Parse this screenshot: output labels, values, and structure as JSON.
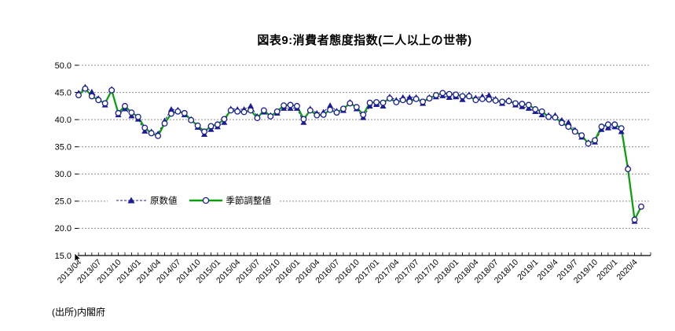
{
  "title": "図表9:消費者態度指数(二人以上の世帯)",
  "source_note": "(出所)内閣府",
  "legend": [
    {
      "label": "原数値",
      "marker": "triangle-icon",
      "line_style": "dashed",
      "color": "#1c1c96"
    },
    {
      "label": "季節調整値",
      "marker": "circle-icon",
      "line_style": "solid",
      "color": "#0ca00c"
    }
  ],
  "colors": {
    "original_series": "#1c1c96",
    "adjusted_series": "#0ca00c",
    "gridline": "#8c8c8c",
    "axis": "#000000"
  },
  "chart_data": {
    "type": "line",
    "title": "図表9:消費者態度指数(二人以上の世帯)",
    "xlabel": "",
    "ylabel": "",
    "ylim": [
      15.0,
      50.0
    ],
    "yticks": [
      15.0,
      20.0,
      25.0,
      30.0,
      35.0,
      40.0,
      45.0,
      50.0
    ],
    "xtick_every": 3,
    "grid": "horizontal-dashed",
    "legend_position": "inside-left-middle",
    "x": [
      "2013/04",
      "2013/05",
      "2013/06",
      "2013/07",
      "2013/08",
      "2013/09",
      "2013/10",
      "2013/11",
      "2013/12",
      "2014/01",
      "2014/02",
      "2014/03",
      "2014/04",
      "2014/05",
      "2014/06",
      "2014/07",
      "2014/08",
      "2014/09",
      "2014/10",
      "2014/11",
      "2014/12",
      "2015/01",
      "2015/02",
      "2015/03",
      "2015/04",
      "2015/05",
      "2015/06",
      "2015/07",
      "2015/08",
      "2015/09",
      "2015/10",
      "2015/11",
      "2015/12",
      "2016/01",
      "2016/02",
      "2016/03",
      "2016/04",
      "2016/05",
      "2016/06",
      "2016/07",
      "2016/08",
      "2016/09",
      "2016/10",
      "2016/11",
      "2016/12",
      "2017/01",
      "2017/02",
      "2017/03",
      "2017/04",
      "2017/05",
      "2017/06",
      "2017/07",
      "2017/08",
      "2017/09",
      "2017/10",
      "2017/11",
      "2017/12",
      "2018/01",
      "2018/02",
      "2018/03",
      "2018/04",
      "2018/05",
      "2018/06",
      "2018/07",
      "2018/08",
      "2018/09",
      "2018/10",
      "2018/11",
      "2018/12",
      "2019/1",
      "2019/2",
      "2019/3",
      "2019/4",
      "2019/5",
      "2019/6",
      "2019/7",
      "2019/8",
      "2019/9",
      "2019/10",
      "2019/11",
      "2019/12",
      "2020/1",
      "2020/2",
      "2020/3",
      "2020/4",
      "2020/5"
    ],
    "series": [
      {
        "name": "原数値",
        "marker": "triangle",
        "line": "dashed",
        "color": "#1c1c96",
        "values": [
          44.9,
          46.0,
          45.1,
          43.9,
          42.7,
          45.6,
          40.9,
          42.0,
          40.7,
          40.1,
          37.9,
          37.8,
          37.4,
          39.8,
          41.9,
          41.8,
          40.9,
          40.1,
          38.6,
          37.3,
          38.2,
          38.7,
          39.5,
          42.0,
          41.9,
          41.9,
          42.5,
          40.6,
          41.4,
          40.8,
          41.2,
          42.1,
          42.1,
          42.1,
          39.5,
          42.0,
          41.2,
          41.4,
          42.6,
          41.6,
          41.7,
          43.2,
          42.0,
          40.4,
          42.5,
          42.8,
          42.5,
          44.2,
          43.6,
          44.1,
          44.1,
          44.1,
          43.0,
          44.1,
          44.2,
          44.4,
          44.1,
          44.2,
          43.7,
          44.6,
          44.0,
          44.3,
          44.5,
          43.8,
          43.0,
          43.6,
          42.7,
          42.4,
          42.1,
          41.5,
          40.9,
          40.8,
          40.8,
          39.9,
          39.5,
          38.1,
          36.8,
          35.8,
          35.9,
          38.2,
          38.5,
          38.7,
          37.8,
          31.2,
          21.3,
          null
        ]
      },
      {
        "name": "季節調整値",
        "marker": "circle",
        "line": "solid",
        "color": "#0ca00c",
        "values": [
          44.5,
          45.7,
          44.3,
          43.6,
          43.0,
          45.4,
          41.2,
          42.5,
          41.3,
          40.5,
          38.5,
          37.5,
          37.0,
          39.3,
          41.1,
          41.5,
          41.2,
          39.9,
          38.9,
          37.8,
          38.8,
          39.1,
          40.1,
          41.7,
          41.5,
          41.4,
          41.7,
          40.3,
          41.7,
          40.6,
          41.5,
          42.6,
          42.7,
          42.5,
          40.1,
          41.7,
          40.8,
          40.9,
          41.8,
          41.3,
          42.0,
          43.0,
          42.3,
          40.9,
          43.1,
          43.2,
          43.1,
          43.9,
          43.2,
          43.6,
          43.3,
          43.8,
          43.3,
          43.9,
          44.5,
          44.9,
          44.7,
          44.6,
          44.3,
          44.3,
          43.6,
          43.8,
          43.7,
          43.5,
          43.3,
          43.4,
          43.0,
          42.9,
          42.7,
          41.9,
          41.5,
          40.5,
          40.4,
          39.4,
          38.7,
          37.8,
          37.1,
          35.6,
          36.2,
          38.7,
          39.1,
          39.1,
          38.4,
          30.9,
          21.6,
          24.0
        ]
      }
    ]
  }
}
